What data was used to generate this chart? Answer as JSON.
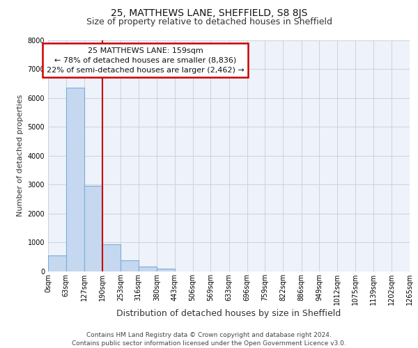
{
  "title": "25, MATTHEWS LANE, SHEFFIELD, S8 8JS",
  "subtitle": "Size of property relative to detached houses in Sheffield",
  "xlabel": "Distribution of detached houses by size in Sheffield",
  "ylabel": "Number of detached properties",
  "footer_line1": "Contains HM Land Registry data © Crown copyright and database right 2024.",
  "footer_line2": "Contains public sector information licensed under the Open Government Licence v3.0.",
  "annotation_line1": "25 MATTHEWS LANE: 159sqm",
  "annotation_line2": "← 78% of detached houses are smaller (8,836)",
  "annotation_line3": "22% of semi-detached houses are larger (2,462) →",
  "property_size_bin_edge": 190,
  "bin_edges": [
    0,
    63,
    127,
    190,
    253,
    316,
    380,
    443,
    506,
    569,
    633,
    696,
    759,
    822,
    886,
    949,
    1012,
    1075,
    1139,
    1202,
    1265
  ],
  "bar_heights": [
    550,
    6350,
    2950,
    950,
    380,
    170,
    100,
    0,
    0,
    0,
    0,
    0,
    0,
    0,
    0,
    0,
    0,
    0,
    0,
    0
  ],
  "bar_color": "#c5d8f0",
  "bar_edge_color": "#7aadda",
  "vline_color": "#cc0000",
  "ylim": [
    0,
    8000
  ],
  "yticks": [
    0,
    1000,
    2000,
    3000,
    4000,
    5000,
    6000,
    7000,
    8000
  ],
  "annotation_box_edge_color": "#cc0000",
  "grid_color": "#cccccc",
  "bg_color": "#edf2fb",
  "title_fontsize": 10,
  "subtitle_fontsize": 9,
  "ylabel_fontsize": 8,
  "xlabel_fontsize": 9,
  "tick_fontsize": 7,
  "annotation_fontsize": 8,
  "footer_fontsize": 6.5
}
